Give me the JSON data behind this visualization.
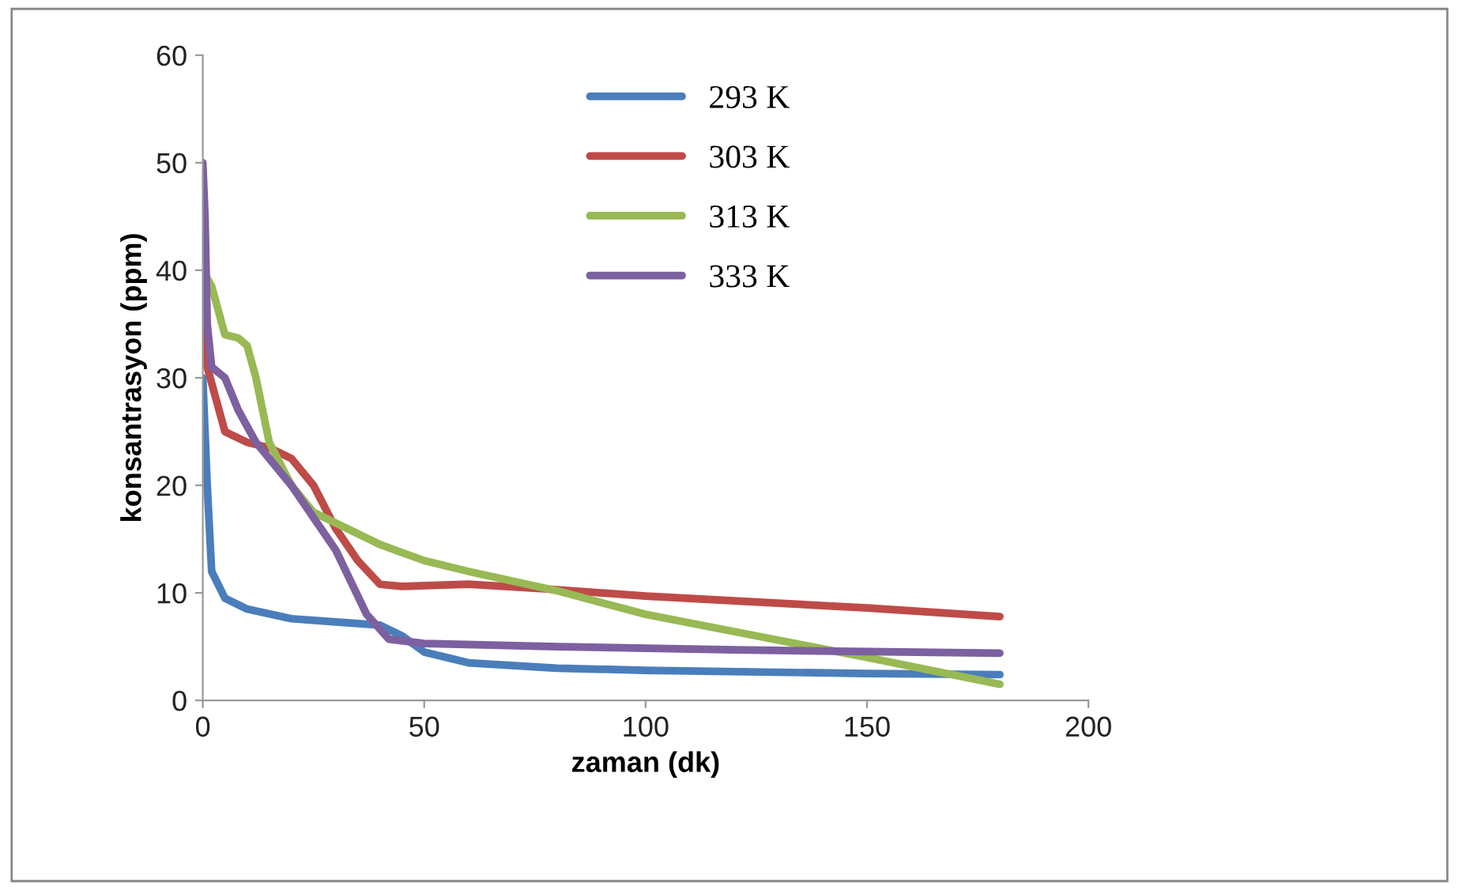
{
  "chart_data": {
    "type": "line",
    "xlabel": "zaman (dk)",
    "ylabel": "konsantrasyon (ppm)",
    "xlim": [
      0,
      200
    ],
    "xticks": [
      0,
      50,
      100,
      150,
      200
    ],
    "ylim": [
      0,
      60
    ],
    "yticks": [
      0,
      10,
      20,
      30,
      40,
      50,
      60
    ],
    "grid": false,
    "legend": "top",
    "marker": "none",
    "line_style": "solid",
    "series": [
      {
        "name": "293 K",
        "color": "#4a7ebb",
        "x": [
          0,
          1,
          2,
          5,
          10,
          20,
          30,
          40,
          45,
          50,
          60,
          80,
          100,
          150,
          180
        ],
        "values": [
          30,
          20,
          12,
          9.5,
          8.5,
          7.6,
          7.3,
          7,
          6,
          4.5,
          3.5,
          3,
          2.8,
          2.5,
          2.4
        ]
      },
      {
        "name": "303 K",
        "color": "#be4b48",
        "x": [
          0,
          1,
          3,
          5,
          10,
          15,
          20,
          25,
          30,
          35,
          40,
          45,
          60,
          80,
          100,
          150,
          180
        ],
        "values": [
          36,
          31,
          28,
          25,
          24,
          23.5,
          22.5,
          20,
          16,
          13,
          10.8,
          10.6,
          10.8,
          10.3,
          9.7,
          8.6,
          7.8
        ]
      },
      {
        "name": "313 K",
        "color": "#98b954",
        "x": [
          0,
          2,
          5,
          8,
          10,
          12,
          15,
          20,
          25,
          30,
          40,
          50,
          60,
          80,
          100,
          150,
          180
        ],
        "values": [
          40,
          38.5,
          34,
          33.7,
          33,
          30,
          24,
          20,
          17.5,
          16.5,
          14.5,
          13,
          12,
          10.2,
          8,
          4,
          1.5
        ]
      },
      {
        "name": "333 K",
        "color": "#7d60a0",
        "x": [
          0,
          0.5,
          1,
          2,
          5,
          8,
          12,
          20,
          30,
          37,
          42,
          50,
          80,
          120,
          180
        ],
        "values": [
          50,
          45,
          35,
          31,
          30,
          27,
          24,
          20,
          14,
          8,
          5.7,
          5.3,
          5,
          4.7,
          4.4
        ]
      }
    ]
  }
}
